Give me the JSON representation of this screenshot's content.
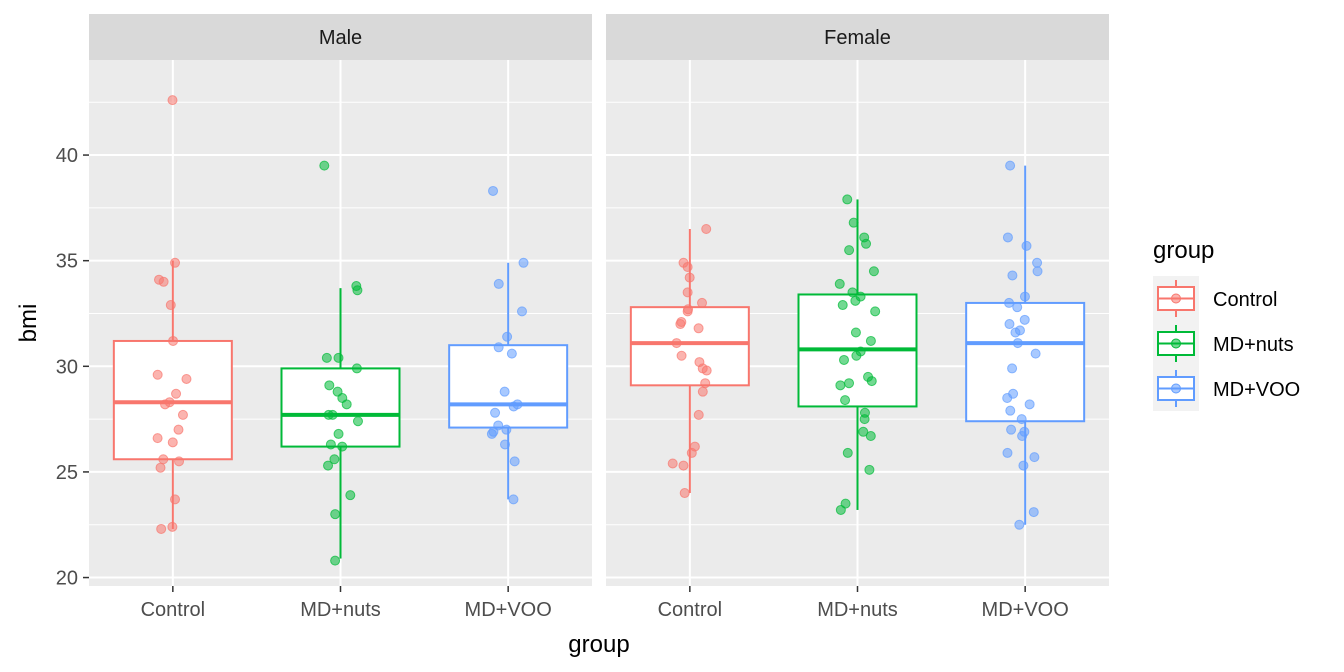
{
  "chart_data": {
    "type": "boxplot",
    "xlabel": "group",
    "ylabel": "bmi",
    "ylim": [
      19.6,
      44.5
    ],
    "yticks": [
      20,
      25,
      30,
      35,
      40
    ],
    "categories": [
      "Control",
      "MD+nuts",
      "MD+VOO"
    ],
    "colors": {
      "Control": "#F8766D",
      "MD+nuts": "#00BA38",
      "MD+VOO": "#619CFF"
    },
    "legend": {
      "title": "group",
      "position": "right",
      "entries": [
        "Control",
        "MD+nuts",
        "MD+VOO"
      ]
    },
    "grid": true,
    "panels": [
      {
        "label": "Male",
        "boxes": [
          {
            "group": "Control",
            "lower_whisker": 22.3,
            "q1": 25.6,
            "median": 28.3,
            "q3": 31.2,
            "upper_whisker": 35.0,
            "points": [
              42.6,
              34.9,
              34.1,
              34.0,
              32.9,
              31.2,
              29.6,
              29.4,
              28.7,
              28.3,
              28.2,
              27.7,
              27.0,
              26.6,
              26.4,
              25.6,
              25.5,
              25.2,
              23.7,
              22.4,
              22.3
            ]
          },
          {
            "group": "MD+nuts",
            "lower_whisker": 20.9,
            "q1": 26.2,
            "median": 27.7,
            "q3": 29.9,
            "upper_whisker": 33.7,
            "points": [
              39.5,
              33.8,
              33.6,
              30.4,
              30.4,
              29.9,
              29.1,
              28.8,
              28.5,
              28.2,
              27.7,
              27.7,
              27.4,
              26.8,
              26.3,
              26.2,
              25.6,
              25.3,
              23.9,
              23.0,
              20.8
            ]
          },
          {
            "group": "MD+VOO",
            "lower_whisker": 23.7,
            "q1": 27.1,
            "median": 28.2,
            "q3": 31.0,
            "upper_whisker": 34.9,
            "points": [
              38.3,
              34.9,
              33.9,
              32.6,
              31.4,
              30.9,
              30.6,
              28.8,
              28.2,
              28.1,
              27.8,
              27.2,
              27.0,
              26.9,
              26.8,
              26.3,
              25.5,
              23.7
            ]
          }
        ]
      },
      {
        "label": "Female",
        "boxes": [
          {
            "group": "Control",
            "lower_whisker": 24.0,
            "q1": 29.1,
            "median": 31.1,
            "q3": 32.8,
            "upper_whisker": 36.5,
            "points": [
              36.5,
              34.9,
              34.7,
              34.2,
              33.5,
              33.0,
              32.7,
              32.6,
              32.1,
              32.0,
              31.8,
              31.1,
              30.5,
              30.2,
              29.9,
              29.8,
              29.2,
              28.8,
              27.7,
              26.2,
              25.9,
              25.4,
              25.3,
              24.0
            ]
          },
          {
            "group": "MD+nuts",
            "lower_whisker": 23.2,
            "q1": 28.1,
            "median": 30.8,
            "q3": 33.4,
            "upper_whisker": 37.9,
            "points": [
              37.9,
              36.8,
              36.1,
              35.8,
              35.5,
              34.5,
              33.9,
              33.5,
              33.3,
              33.1,
              32.9,
              32.6,
              31.6,
              31.2,
              30.7,
              30.5,
              30.3,
              29.5,
              29.3,
              29.2,
              29.1,
              28.4,
              27.8,
              27.5,
              26.9,
              26.7,
              25.9,
              25.1,
              23.5,
              23.2
            ]
          },
          {
            "group": "MD+VOO",
            "lower_whisker": 22.5,
            "q1": 27.4,
            "median": 31.1,
            "q3": 33.0,
            "upper_whisker": 39.5,
            "points": [
              39.5,
              36.1,
              35.7,
              34.9,
              34.5,
              34.3,
              33.3,
              33.0,
              32.8,
              32.2,
              32.0,
              31.7,
              31.6,
              31.1,
              30.6,
              29.9,
              28.7,
              28.5,
              28.2,
              27.9,
              27.5,
              27.0,
              26.9,
              26.7,
              25.9,
              25.7,
              25.3,
              23.1,
              22.5
            ]
          }
        ]
      }
    ]
  }
}
